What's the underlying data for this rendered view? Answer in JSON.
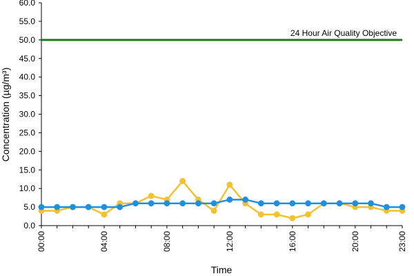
{
  "chart_data": {
    "type": "line",
    "title": "",
    "xlabel": "Time",
    "ylabel": "Concentration (µg/m³)",
    "ylim": [
      0,
      60
    ],
    "yticks": [
      "0.0",
      "5.0",
      "10.0",
      "15.0",
      "20.0",
      "25.0",
      "30.0",
      "35.0",
      "40.0",
      "45.0",
      "50.0",
      "55.0",
      "60.0"
    ],
    "x": [
      0,
      1,
      2,
      3,
      4,
      5,
      6,
      7,
      8,
      9,
      10,
      11,
      12,
      13,
      14,
      15,
      16,
      17,
      18,
      19,
      20,
      21,
      22,
      23
    ],
    "xticks": [
      {
        "x": 0,
        "label": "00:00"
      },
      {
        "x": 4,
        "label": "04:00"
      },
      {
        "x": 8,
        "label": "08:00"
      },
      {
        "x": 12,
        "label": "12:00"
      },
      {
        "x": 16,
        "label": "16:00"
      },
      {
        "x": 20,
        "label": "20:00"
      },
      {
        "x": 23,
        "label": "23:00"
      }
    ],
    "series": [
      {
        "color": "#f2c232",
        "marker_color": "#f2c232",
        "values": [
          4,
          4,
          5,
          5,
          3,
          6,
          6,
          8,
          7,
          12,
          7,
          4,
          11,
          6,
          3,
          3,
          2,
          3,
          6,
          6,
          5,
          5,
          4,
          4
        ]
      },
      {
        "color": "#1e8fe1",
        "marker_color": "#1e8fe1",
        "values": [
          5,
          5,
          5,
          5,
          5,
          5,
          6,
          6,
          6,
          6,
          6,
          6,
          7,
          7,
          6,
          6,
          6,
          6,
          6,
          6,
          6,
          6,
          5,
          5
        ]
      }
    ],
    "threshold": {
      "value": 50,
      "label": "24 Hour Air Quality Objective",
      "color": "#1f7a1f"
    },
    "grid": false,
    "legend": "none"
  }
}
